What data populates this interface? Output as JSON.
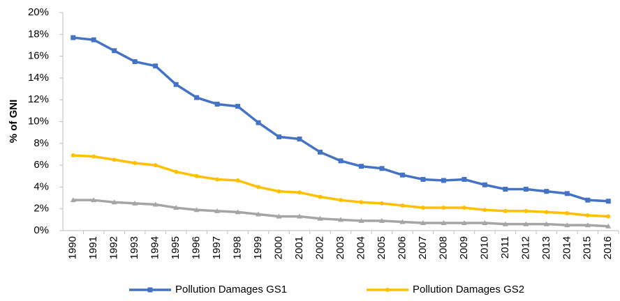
{
  "chart_data": {
    "type": "line",
    "y_label": "% of GNI",
    "categories": [
      "1990",
      "1991",
      "1992",
      "1993",
      "1994",
      "1995",
      "1996",
      "1997",
      "1998",
      "1999",
      "2000",
      "2001",
      "2002",
      "2003",
      "2004",
      "2005",
      "2006",
      "2007",
      "2008",
      "2009",
      "2010",
      "2011",
      "2012",
      "2013",
      "2014",
      "2015",
      "2016"
    ],
    "series": [
      {
        "name": "Pollution Damages GS1",
        "color": "#4472c4",
        "marker": "square",
        "values": [
          17.7,
          17.5,
          16.5,
          15.5,
          15.1,
          13.4,
          12.2,
          11.6,
          11.4,
          9.9,
          8.6,
          8.4,
          7.2,
          6.4,
          5.9,
          5.7,
          5.1,
          4.7,
          4.6,
          4.7,
          4.2,
          3.8,
          3.8,
          3.6,
          3.4,
          2.8,
          2.7
        ]
      },
      {
        "name": "Pollution Damages GS2",
        "color": "#ffc000",
        "marker": "circle",
        "values": [
          6.9,
          6.8,
          6.5,
          6.2,
          6.0,
          5.4,
          5.0,
          4.7,
          4.6,
          4.0,
          3.6,
          3.5,
          3.1,
          2.8,
          2.6,
          2.5,
          2.3,
          2.1,
          2.1,
          2.1,
          1.9,
          1.8,
          1.8,
          1.7,
          1.6,
          1.4,
          1.3
        ]
      },
      {
        "color": "#a5a5a5",
        "marker": "triangle",
        "values": [
          2.8,
          2.8,
          2.6,
          2.5,
          2.4,
          2.1,
          1.9,
          1.8,
          1.7,
          1.5,
          1.3,
          1.3,
          1.1,
          1.0,
          0.9,
          0.9,
          0.8,
          0.7,
          0.7,
          0.7,
          0.7,
          0.6,
          0.6,
          0.6,
          0.5,
          0.5,
          0.4
        ]
      }
    ],
    "ylim": [
      0,
      20
    ],
    "yticks": [
      {
        "value": 0,
        "label": "0%"
      },
      {
        "value": 2,
        "label": "2%"
      },
      {
        "value": 4,
        "label": "4%"
      },
      {
        "value": 6,
        "label": "6%"
      },
      {
        "value": 8,
        "label": "8%"
      },
      {
        "value": 10,
        "label": "10%"
      },
      {
        "value": 12,
        "label": "12%"
      },
      {
        "value": 14,
        "label": "14%"
      },
      {
        "value": 16,
        "label": "16%"
      },
      {
        "value": 18,
        "label": "18%"
      },
      {
        "value": 20,
        "label": "20%"
      }
    ],
    "grid": false,
    "legend": "bottom"
  }
}
